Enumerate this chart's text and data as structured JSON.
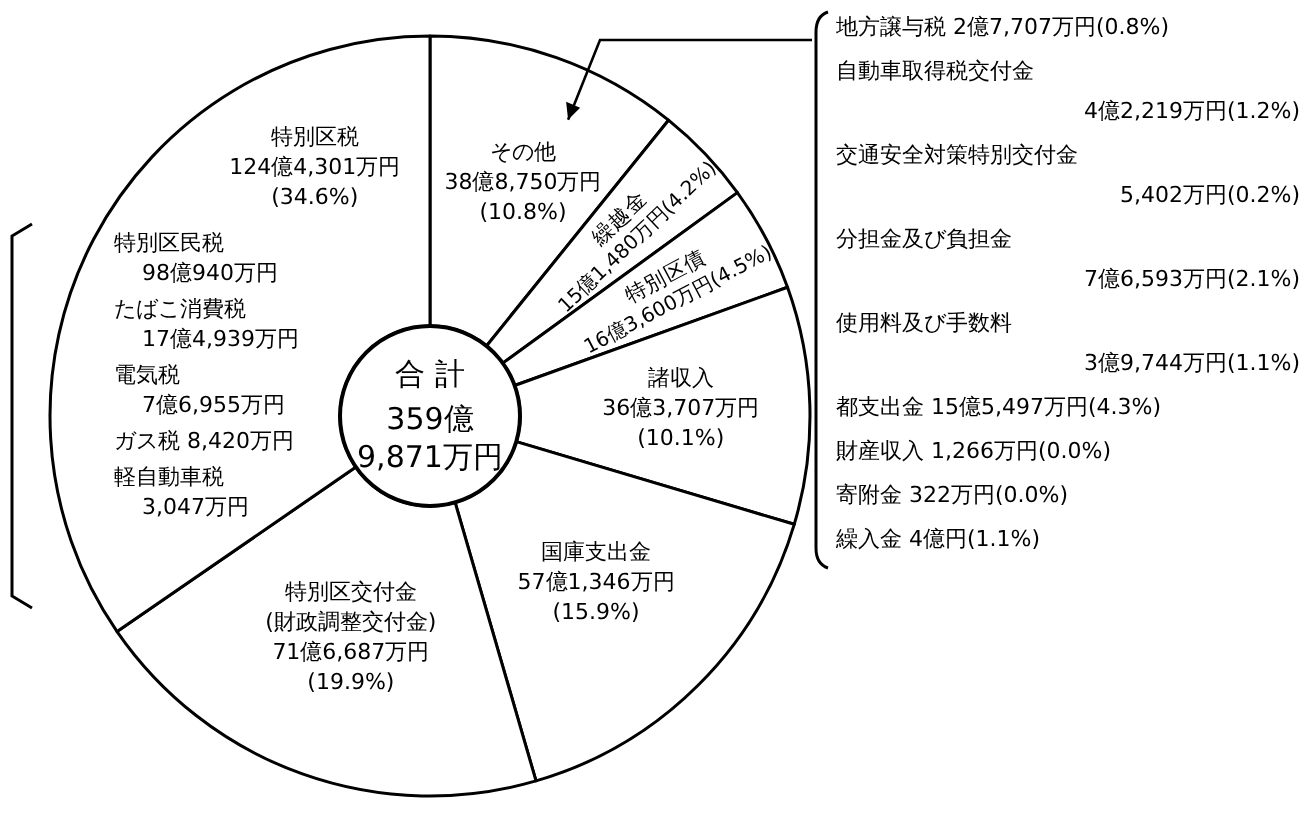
{
  "chart_data": {
    "type": "donut",
    "categories": [
      "その他",
      "繰越金",
      "特別区債",
      "諸収入",
      "国庫支出金",
      "特別区交付金\n(財政調整交付金)",
      "特別区税"
    ],
    "values": [
      10.8,
      4.2,
      4.5,
      10.1,
      15.9,
      19.9,
      34.6
    ],
    "colors": [
      "#ffffff",
      "#ffffff",
      "#ffffff",
      "#ffffff",
      "#ffffff",
      "#ffffff",
      "#ffffff"
    ],
    "value_labels": [
      "38億8,750万円\n(10.8%)",
      "15億1,480万円(4.2%)",
      "16億3,600万円(4.5%)",
      "36億3,707万円\n(10.1%)",
      "57億1,346万円\n(15.9%)",
      "71億6,687万円\n(19.9%)",
      "124億4,301万円\n(34.6%)"
    ],
    "annotations": [
      "合 計\n359億\n9,871万円",
      "特別区民税\n98億940万円",
      "たばこ消費税\n17億4,939万円",
      "電気税\n7億6,955万円",
      "ガス税 8,420万円",
      "軽自動車税\n3,047万円",
      "地方譲与税 2億7,707万円(0.8%)",
      "自動車取得税交付金\n4億2,219万円(1.2%)",
      "交通安全対策特別交付金\n5,402万円(0.2%)",
      "分担金及び負担金\n7億6,593万円(2.1%)",
      "使用料及び手数料\n3億9,744万円(1.1%)",
      "都支出金 15億5,497万円(4.3%)",
      "財産収入 1,266万円(0.0%)",
      "寄附金 322万円(0.0%)",
      "繰入金 4億円(1.1%)"
    ]
  }
}
